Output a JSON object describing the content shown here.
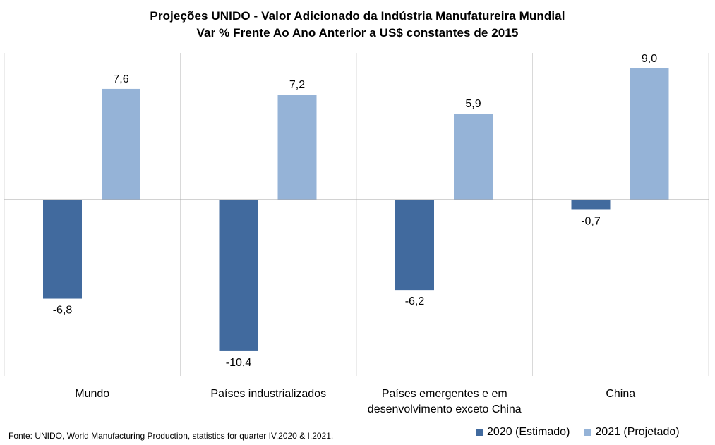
{
  "chart_data": {
    "type": "bar",
    "title": "Projeções UNIDO - Valor Adicionado da Indústria Manufatureira Mundial",
    "subtitle": "Var % Frente Ao Ano Anterior a US$ constantes de 2015",
    "categories": [
      "Mundo",
      "Países industrializados",
      "Países emergentes e em desenvolvimento exceto China",
      "China"
    ],
    "category_lines": [
      [
        "Mundo"
      ],
      [
        "Países industrializados"
      ],
      [
        "Países emergentes e em",
        "desenvolvimento exceto China"
      ],
      [
        "China"
      ]
    ],
    "series": [
      {
        "name": "2020 (Estimado)",
        "values": [
          -6.8,
          -10.4,
          -6.2,
          -0.7
        ],
        "labels": [
          "-6,8",
          "-10,4",
          "-6,2",
          "-0,7"
        ],
        "color": "#416a9e"
      },
      {
        "name": "2021 (Projetado)",
        "values": [
          7.6,
          7.2,
          5.9,
          9.0
        ],
        "labels": [
          "7,6",
          "7,2",
          "5,9",
          "9,0"
        ],
        "color": "#95b3d7"
      }
    ],
    "ylim": [
      -10.4,
      9.0
    ],
    "grid": false,
    "category_separators": true,
    "legend_position": "bottom-right",
    "data_labels": true
  },
  "source": "Fonte: UNIDO, World Manufacturing Production, statistics for quarter IV,2020 & I,2021."
}
